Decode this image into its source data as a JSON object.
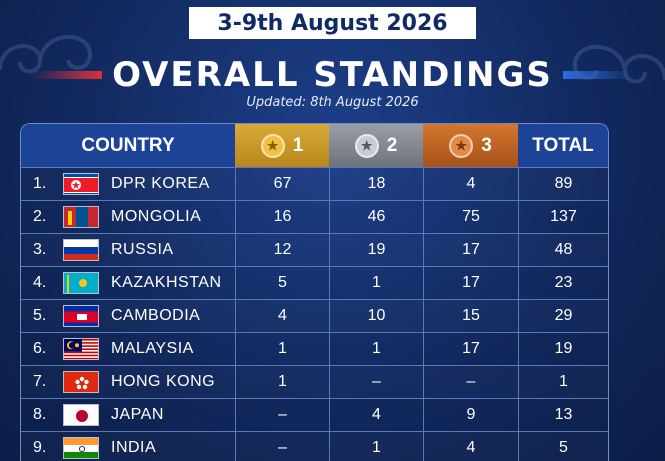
{
  "header": {
    "date_range": "3-9th August 2026",
    "title": "OVERALL STANDINGS",
    "updated": "Updated: 8th August 2026"
  },
  "table": {
    "columns": {
      "country": "COUNTRY",
      "gold": "1",
      "silver": "2",
      "bronze": "3",
      "total": "TOTAL"
    },
    "rows": [
      {
        "rank": "1.",
        "country": "DPR KOREA",
        "flag": "north-korea-flag",
        "gold": "67",
        "silver": "18",
        "bronze": "4",
        "total": "89"
      },
      {
        "rank": "2.",
        "country": "MONGOLIA",
        "flag": "mongolia-flag",
        "gold": "16",
        "silver": "46",
        "bronze": "75",
        "total": "137"
      },
      {
        "rank": "3.",
        "country": "RUSSIA",
        "flag": "russia-flag",
        "gold": "12",
        "silver": "19",
        "bronze": "17",
        "total": "48"
      },
      {
        "rank": "4.",
        "country": "KAZAKHSTAN",
        "flag": "kazakhstan-flag",
        "gold": "5",
        "silver": "1",
        "bronze": "17",
        "total": "23"
      },
      {
        "rank": "5.",
        "country": "CAMBODIA",
        "flag": "cambodia-flag",
        "gold": "4",
        "silver": "10",
        "bronze": "15",
        "total": "29"
      },
      {
        "rank": "6.",
        "country": "MALAYSIA",
        "flag": "malaysia-flag",
        "gold": "1",
        "silver": "1",
        "bronze": "17",
        "total": "19"
      },
      {
        "rank": "7.",
        "country": "HONG KONG",
        "flag": "hong-kong-flag",
        "gold": "1",
        "silver": "–",
        "bronze": "–",
        "total": "1"
      },
      {
        "rank": "8.",
        "country": "JAPAN",
        "flag": "japan-flag",
        "gold": "–",
        "silver": "4",
        "bronze": "9",
        "total": "13"
      },
      {
        "rank": "9.",
        "country": "INDIA",
        "flag": "india-flag",
        "gold": "–",
        "silver": "1",
        "bronze": "4",
        "total": "5"
      }
    ]
  },
  "colors": {
    "background": "#12295e",
    "header_blue": "#1d4397",
    "gold": "#d9aa38",
    "silver": "#9a9ea6",
    "bronze": "#d3772f"
  }
}
